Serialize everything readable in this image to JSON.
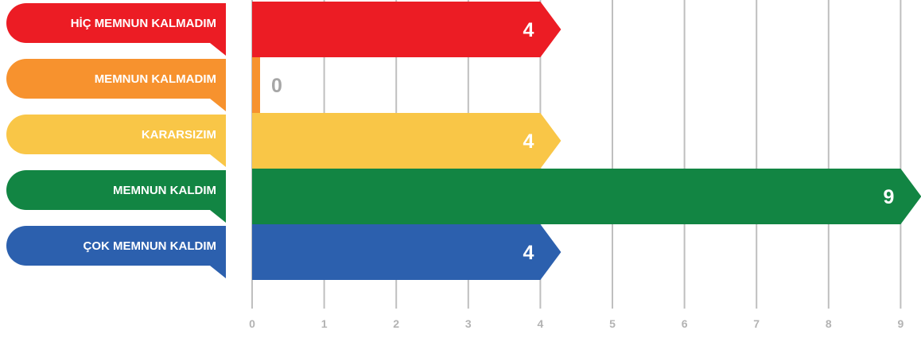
{
  "chart_data": {
    "type": "bar",
    "orientation": "horizontal",
    "categories": [
      "HİÇ MEMNUN KALMADIM",
      "MEMNUN KALMADIM",
      "KARARSIZIM",
      "MEMNUN KALDIM",
      "ÇOK MEMNUN KALDIM"
    ],
    "values": [
      4,
      0,
      4,
      9,
      4
    ],
    "colors": [
      "#ec1c24",
      "#f7922e",
      "#f9c647",
      "#128543",
      "#2c60ae"
    ],
    "xticks": [
      "0",
      "1",
      "2",
      "3",
      "4",
      "5",
      "6",
      "7",
      "8",
      "9"
    ],
    "xlim": [
      0,
      9
    ],
    "grid": true,
    "data_labels": true,
    "zero_value_label_color": "#a6a6a6",
    "gridline_color": "#bfbfbf"
  }
}
